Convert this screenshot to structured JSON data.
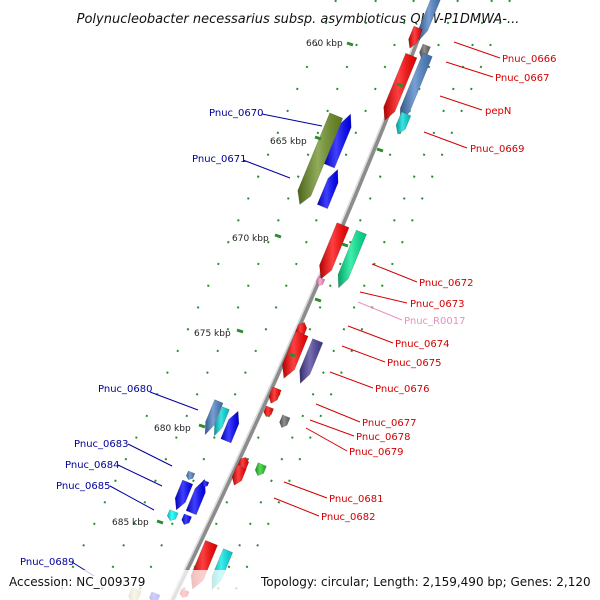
{
  "title": "Polynucleobacter necessarius subsp. asymbioticus QLW-P1DMWA-...",
  "footer": {
    "accession": "Accession: NC_009379",
    "summary": "Topology: circular; Length: 2,159,490 bp; Genes: 2,120"
  },
  "colors": {
    "backbone": "#8c8c8c",
    "tick": "#2e8b2e",
    "label_left": "#00009c",
    "label_right": "#d40000",
    "label_rna": "#e890c0"
  },
  "ticks": [
    {
      "label": "660 kbp"
    },
    {
      "label": "665 kbp"
    },
    {
      "label": "670 kbp"
    },
    {
      "label": "675 kbp"
    },
    {
      "label": "680 kbp"
    },
    {
      "label": "685 kbp"
    }
  ],
  "labels_left": [
    {
      "text": "Pnuc_0670"
    },
    {
      "text": "Pnuc_0671"
    },
    {
      "text": "Pnuc_0680"
    },
    {
      "text": "Pnuc_0683"
    },
    {
      "text": "Pnuc_0684"
    },
    {
      "text": "Pnuc_0685"
    },
    {
      "text": "Pnuc_0689"
    }
  ],
  "labels_right": [
    {
      "text": "Pnuc_0666"
    },
    {
      "text": "Pnuc_0667"
    },
    {
      "text": "pepN"
    },
    {
      "text": "Pnuc_0669"
    },
    {
      "text": "Pnuc_0672"
    },
    {
      "text": "Pnuc_0673"
    },
    {
      "text": "Pnuc_R0017"
    },
    {
      "text": "Pnuc_0674"
    },
    {
      "text": "Pnuc_0675"
    },
    {
      "text": "Pnuc_0676"
    },
    {
      "text": "Pnuc_0677"
    },
    {
      "text": "Pnuc_0678"
    },
    {
      "text": "Pnuc_0679"
    },
    {
      "text": "Pnuc_0681"
    },
    {
      "text": "Pnuc_0682"
    }
  ]
}
